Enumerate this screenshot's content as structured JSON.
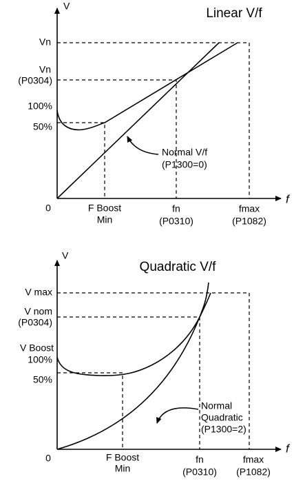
{
  "diagrams": [
    {
      "title": "Linear V/f",
      "y_axis_label": "V",
      "x_axis_label": "f",
      "origin": "0",
      "y_labels": [
        "Vn",
        "Vn",
        "(P0304)",
        "100%",
        "50%"
      ],
      "x_labels": [
        "F Boost",
        "Min",
        "fn",
        "(P0310)",
        "fmax",
        "(P1082)"
      ],
      "annotation": [
        "Normal V/f",
        "(P1300=0)"
      ]
    },
    {
      "title": "Quadratic V/f",
      "y_axis_label": "V",
      "x_axis_label": "f",
      "origin": "0",
      "y_labels": [
        "V max",
        "V nom",
        "(P0304)",
        "V Boost",
        "100%",
        "50%"
      ],
      "x_labels": [
        "F Boost",
        "Min",
        "fn",
        "(P0310)",
        "fmax",
        "(P1082)"
      ],
      "annotation": [
        "Normal",
        "Quadratic",
        "(P1300=2)"
      ]
    }
  ]
}
